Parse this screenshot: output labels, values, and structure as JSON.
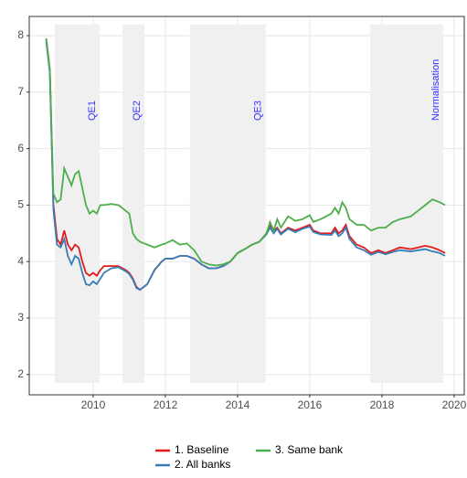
{
  "chart_data": {
    "type": "line",
    "x": [
      2008.7,
      2008.8,
      2008.9,
      2009.0,
      2009.1,
      2009.2,
      2009.3,
      2009.4,
      2009.5,
      2009.6,
      2009.7,
      2009.8,
      2009.9,
      2010.0,
      2010.1,
      2010.2,
      2010.3,
      2010.5,
      2010.7,
      2010.9,
      2011.0,
      2011.1,
      2011.2,
      2011.3,
      2011.5,
      2011.7,
      2011.9,
      2012.0,
      2012.2,
      2012.4,
      2012.6,
      2012.8,
      2013.0,
      2013.2,
      2013.4,
      2013.6,
      2013.8,
      2014.0,
      2014.2,
      2014.4,
      2014.6,
      2014.8,
      2014.9,
      2015.0,
      2015.1,
      2015.2,
      2015.4,
      2015.6,
      2015.8,
      2016.0,
      2016.1,
      2016.3,
      2016.6,
      2016.7,
      2016.8,
      2016.9,
      2017.0,
      2017.1,
      2017.3,
      2017.5,
      2017.7,
      2017.9,
      2018.1,
      2018.3,
      2018.5,
      2018.8,
      2019.0,
      2019.2,
      2019.4,
      2019.6,
      2019.75
    ],
    "series": [
      {
        "name": "1. Baseline",
        "color": "#e41a1c",
        "values": [
          7.95,
          7.4,
          5.0,
          4.4,
          4.3,
          4.55,
          4.3,
          4.2,
          4.3,
          4.25,
          4.0,
          3.8,
          3.75,
          3.8,
          3.75,
          3.85,
          3.92,
          3.92,
          3.92,
          3.85,
          3.8,
          3.7,
          3.55,
          3.5,
          3.6,
          3.85,
          4.0,
          4.05,
          4.05,
          4.1,
          4.1,
          4.05,
          3.95,
          3.88,
          3.88,
          3.92,
          4.0,
          4.15,
          4.22,
          4.3,
          4.35,
          4.5,
          4.65,
          4.55,
          4.6,
          4.5,
          4.6,
          4.55,
          4.6,
          4.65,
          4.55,
          4.5,
          4.5,
          4.6,
          4.5,
          4.55,
          4.65,
          4.45,
          4.3,
          4.25,
          4.15,
          4.2,
          4.15,
          4.2,
          4.25,
          4.22,
          4.25,
          4.28,
          4.25,
          4.2,
          4.15
        ]
      },
      {
        "name": "2. All banks",
        "color": "#377eb8",
        "values": [
          7.9,
          7.35,
          4.9,
          4.3,
          4.25,
          4.4,
          4.1,
          3.95,
          4.1,
          4.05,
          3.8,
          3.6,
          3.58,
          3.65,
          3.6,
          3.7,
          3.8,
          3.88,
          3.9,
          3.83,
          3.78,
          3.68,
          3.53,
          3.5,
          3.6,
          3.85,
          4.0,
          4.05,
          4.05,
          4.1,
          4.1,
          4.05,
          3.95,
          3.88,
          3.88,
          3.92,
          4.0,
          4.15,
          4.22,
          4.3,
          4.35,
          4.48,
          4.6,
          4.5,
          4.58,
          4.48,
          4.58,
          4.52,
          4.58,
          4.62,
          4.52,
          4.48,
          4.47,
          4.55,
          4.45,
          4.5,
          4.6,
          4.4,
          4.25,
          4.2,
          4.12,
          4.17,
          4.13,
          4.17,
          4.2,
          4.18,
          4.2,
          4.22,
          4.18,
          4.15,
          4.1
        ]
      },
      {
        "name": "3. Same bank",
        "color": "#4daf4a",
        "values": [
          7.95,
          7.4,
          5.2,
          5.05,
          5.1,
          5.65,
          5.5,
          5.35,
          5.55,
          5.6,
          5.3,
          5.0,
          4.85,
          4.9,
          4.85,
          5.0,
          5.0,
          5.02,
          5.0,
          4.9,
          4.85,
          4.5,
          4.4,
          4.35,
          4.3,
          4.25,
          4.3,
          4.32,
          4.38,
          4.3,
          4.32,
          4.2,
          4.0,
          3.95,
          3.93,
          3.95,
          4.0,
          4.15,
          4.22,
          4.3,
          4.35,
          4.5,
          4.7,
          4.55,
          4.75,
          4.6,
          4.8,
          4.72,
          4.75,
          4.82,
          4.7,
          4.75,
          4.85,
          4.95,
          4.85,
          5.05,
          4.95,
          4.75,
          4.65,
          4.65,
          4.55,
          4.6,
          4.6,
          4.7,
          4.75,
          4.8,
          4.9,
          5.0,
          5.1,
          5.05,
          5.0
        ]
      }
    ],
    "shaded_periods": [
      {
        "label": "QE1",
        "start": 2008.94,
        "end": 2010.18
      },
      {
        "label": "QE2",
        "start": 2010.81,
        "end": 2011.42
      },
      {
        "label": "QE3",
        "start": 2012.68,
        "end": 2014.78
      },
      {
        "label": "Normalisation",
        "start": 2017.67,
        "end": 2019.7
      }
    ],
    "shade_color": "#f0f0f0",
    "period_label_color": "#3333ff",
    "xlim": [
      2008.23,
      2020.28
    ],
    "xticks": [
      2010,
      2012,
      2014,
      2016,
      2018,
      2020
    ],
    "ylim": [
      1.64,
      8.34
    ],
    "yticks": [
      2,
      3,
      4,
      5,
      6,
      7,
      8
    ],
    "grid": true,
    "legend_position": "bottom"
  }
}
